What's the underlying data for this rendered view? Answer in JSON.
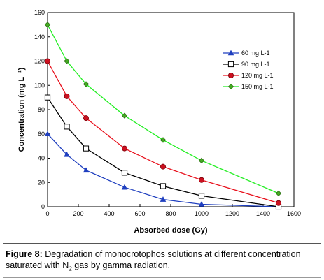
{
  "chart_data": {
    "type": "line",
    "xlabel": "Absorbed dose (Gy)",
    "ylabel": "Concentration (mg L⁻¹)",
    "xlim": [
      0,
      1600
    ],
    "ylim": [
      0,
      160
    ],
    "x_ticks": [
      "0",
      "200",
      "400",
      "600",
      "800",
      "1000",
      "1200",
      "1400",
      "1600"
    ],
    "y_ticks": [
      "0",
      "20",
      "40",
      "60",
      "80",
      "100",
      "120",
      "140",
      "160"
    ],
    "grid": false,
    "legend_position": "top-right",
    "series": [
      {
        "name": "60 mg L-1",
        "marker": "triangle",
        "color": "#1f3fbf",
        "fill": "#1f3fbf",
        "x": [
          0,
          125,
          250,
          500,
          750,
          1000,
          1500
        ],
        "y": [
          60,
          43,
          30,
          16,
          6,
          2,
          0
        ]
      },
      {
        "name": "90 mg L-1",
        "marker": "square",
        "color": "#000000",
        "fill": "#ffffff",
        "x": [
          0,
          125,
          250,
          500,
          750,
          1000,
          1500
        ],
        "y": [
          90,
          66,
          48,
          28,
          17,
          9,
          0
        ]
      },
      {
        "name": "120 mg L-1",
        "marker": "circle",
        "color": "#e8101c",
        "fill": "#cc1020",
        "x": [
          0,
          125,
          250,
          500,
          750,
          1000,
          1500
        ],
        "y": [
          120,
          91,
          73,
          48,
          33,
          22,
          3
        ]
      },
      {
        "name": "150 mg L-1",
        "marker": "diamond",
        "color": "#22ee22",
        "fill": "#44aa22",
        "x": [
          0,
          125,
          250,
          500,
          750,
          1000,
          1500
        ],
        "y": [
          150,
          120,
          101,
          75,
          55,
          38,
          11
        ]
      }
    ]
  },
  "caption": {
    "label": "Figure 8:",
    "text_1": " Degradation of monocrotophos solutions at different concentration saturated with N",
    "subscript": "2",
    "text_2": " gas by gamma radiation."
  }
}
